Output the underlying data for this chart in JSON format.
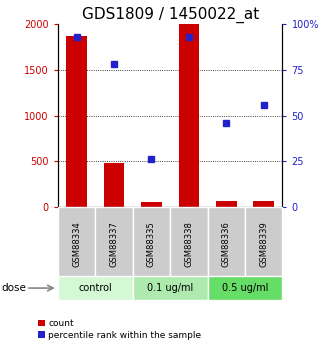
{
  "title": "GDS1809 / 1450022_at",
  "samples": [
    "GSM88334",
    "GSM88337",
    "GSM88335",
    "GSM88338",
    "GSM88336",
    "GSM88339"
  ],
  "counts": [
    1870,
    480,
    55,
    2000,
    70,
    62
  ],
  "percentiles": [
    93,
    78,
    26,
    93,
    46,
    56
  ],
  "group_labels": [
    "control",
    "0.1 ug/ml",
    "0.5 ug/ml"
  ],
  "group_starts": [
    0,
    2,
    4
  ],
  "group_ends": [
    2,
    4,
    6
  ],
  "group_bg_colors": [
    "#d4f7d4",
    "#aeeaae",
    "#66dd66"
  ],
  "bar_color": "#cc0000",
  "dot_color": "#2222cc",
  "left_ylim": [
    0,
    2000
  ],
  "right_ylim": [
    0,
    100
  ],
  "left_yticks": [
    0,
    500,
    1000,
    1500,
    2000
  ],
  "right_yticks": [
    0,
    25,
    50,
    75,
    100
  ],
  "right_yticklabels": [
    "0",
    "25",
    "50",
    "75",
    "100%"
  ],
  "bar_width": 0.55,
  "title_fontsize": 11,
  "tick_fontsize": 7,
  "sample_bg_color": "#cccccc",
  "dose_arrow_text": "dose",
  "legend_count_label": "count",
  "legend_pct_label": "percentile rank within the sample"
}
